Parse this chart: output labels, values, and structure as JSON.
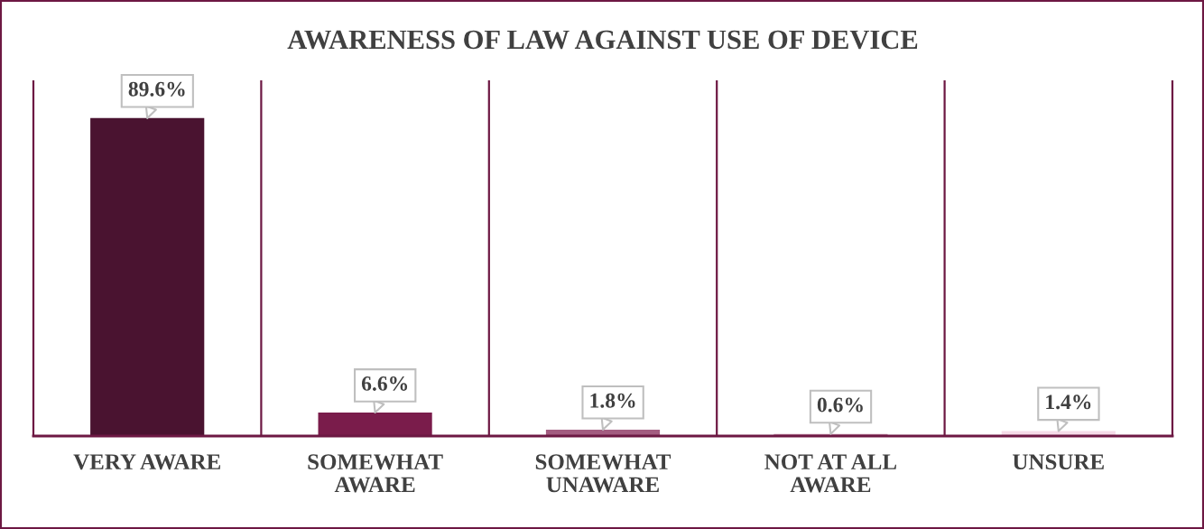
{
  "chart_data": {
    "type": "bar",
    "title": "AWARENESS OF LAW AGAINST USE OF DEVICE",
    "categories": [
      "VERY AWARE",
      "SOMEWHAT\nAWARE",
      "SOMEWHAT\nUNAWARE",
      "NOT AT ALL\nAWARE",
      "UNSURE"
    ],
    "values": [
      89.6,
      6.6,
      1.8,
      0.6,
      1.4
    ],
    "colors": [
      "#4a1330",
      "#7a1c4b",
      "#a35c80",
      "#c48aa8",
      "#f5dbe8"
    ],
    "value_labels": [
      "89.6%",
      "6.6%",
      "1.8%",
      "0.6%",
      "1.4%"
    ],
    "ylim": [
      0,
      100
    ],
    "grid": "x",
    "tick_labels": "x",
    "legend": false
  }
}
